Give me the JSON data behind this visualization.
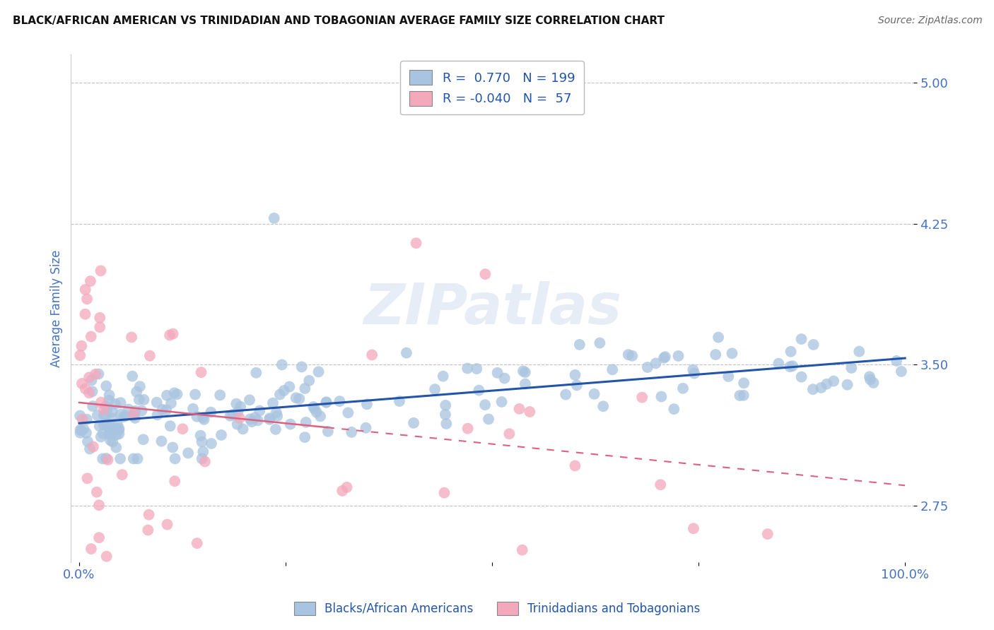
{
  "title": "BLACK/AFRICAN AMERICAN VS TRINIDADIAN AND TOBAGONIAN AVERAGE FAMILY SIZE CORRELATION CHART",
  "source": "Source: ZipAtlas.com",
  "ylabel": "Average Family Size",
  "watermark": "ZIPatlas",
  "blue_R": 0.77,
  "blue_N": 199,
  "pink_R": -0.04,
  "pink_N": 57,
  "blue_color": "#a8c4e0",
  "pink_color": "#f4a8bc",
  "blue_line_color": "#2255aa",
  "pink_line_color": "#e06080",
  "title_color": "#111111",
  "source_color": "#666666",
  "axis_label_color": "#4472c4",
  "tick_label_color": "#4472c4",
  "legend_label1": "Blacks/African Americans",
  "legend_label2": "Trinidadians and Tobagonians",
  "ylim_min": 2.45,
  "ylim_max": 5.15,
  "xlim_min": -1,
  "xlim_max": 101,
  "yticks": [
    2.75,
    3.5,
    4.25,
    5.0
  ],
  "xticks": [
    0,
    25,
    50,
    75,
    100
  ],
  "xtick_labels": [
    "0.0%",
    "",
    "",
    "",
    "100.0%"
  ],
  "grid_color": "#bbbbbb",
  "background_color": "#ffffff",
  "seed": 12345
}
